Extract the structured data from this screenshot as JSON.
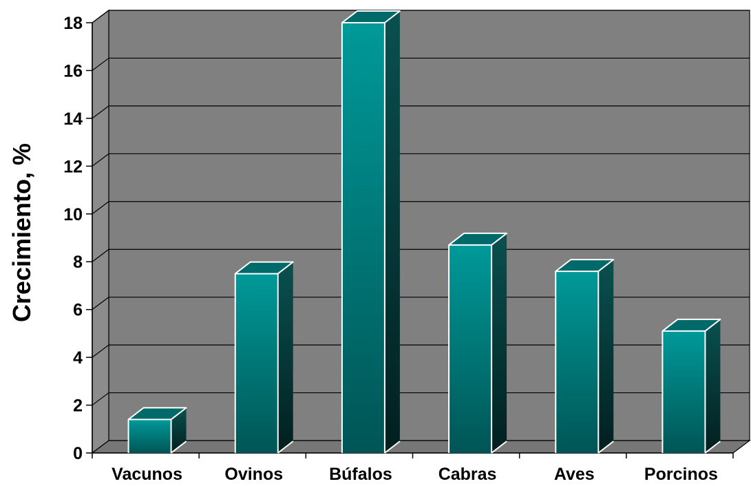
{
  "chart_data": {
    "type": "bar",
    "title": "",
    "xlabel": "",
    "ylabel": "Crecimiento, %",
    "categories": [
      "Vacunos",
      "Ovinos",
      "Búfalos",
      "Cabras",
      "Aves",
      "Porcinos"
    ],
    "values": [
      1.4,
      7.5,
      18.0,
      8.7,
      7.6,
      5.1
    ],
    "ylim": [
      0,
      18
    ],
    "yticks": [
      0,
      2,
      4,
      6,
      8,
      10,
      12,
      14,
      16,
      18
    ],
    "ytick_labels": [
      "0",
      "2",
      "4",
      "6",
      "8",
      "10",
      "12",
      "14",
      "16",
      "18"
    ],
    "grid": true,
    "style": "3d",
    "colors": {
      "wall": "#808080",
      "bar_front_top": "#009999",
      "bar_front_bottom": "#005555",
      "bar_side": "#003a3a",
      "bar_top": "#006a6a",
      "edge": "#ffffff"
    }
  }
}
